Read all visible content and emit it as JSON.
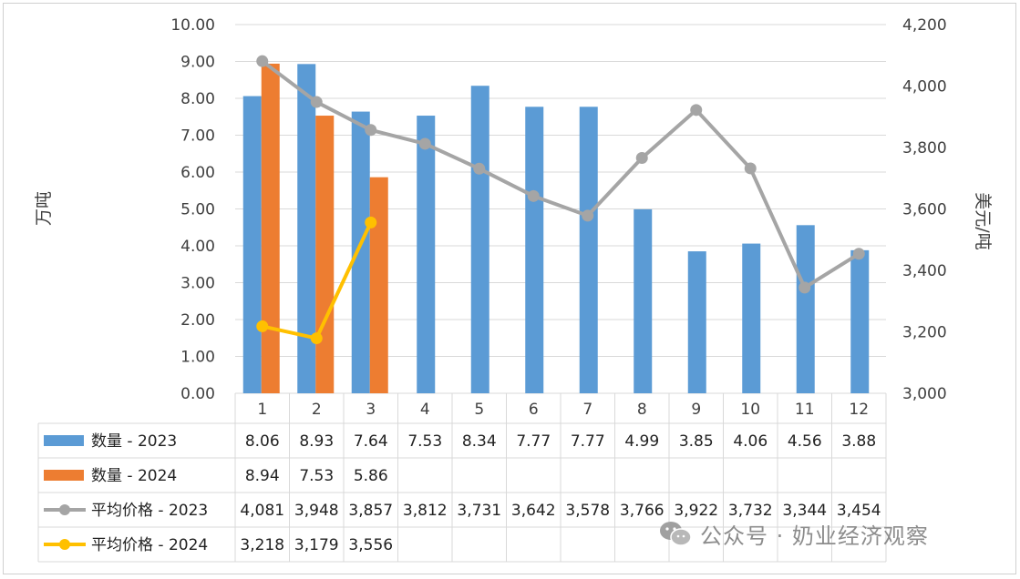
{
  "chart_data": {
    "type": "bar",
    "categories": [
      "1",
      "2",
      "3",
      "4",
      "5",
      "6",
      "7",
      "8",
      "9",
      "10",
      "11",
      "12"
    ],
    "ylabel": "万吨",
    "y2label": "美元/吨",
    "ylim": [
      0,
      10
    ],
    "y2lim": [
      3000,
      4200
    ],
    "y_ticks": [
      "0.00",
      "1.00",
      "2.00",
      "3.00",
      "4.00",
      "5.00",
      "6.00",
      "7.00",
      "8.00",
      "9.00",
      "10.00"
    ],
    "y2_ticks": [
      "3,000",
      "3,200",
      "3,400",
      "3,600",
      "3,800",
      "4,000",
      "4,200"
    ],
    "series": [
      {
        "name": "数量 - 2023",
        "kind": "bar",
        "axis": "left",
        "color": "#5b9bd5",
        "values": [
          8.06,
          8.93,
          7.64,
          7.53,
          8.34,
          7.77,
          7.77,
          4.99,
          3.85,
          4.06,
          4.56,
          3.88
        ],
        "labels": [
          "8.06",
          "8.93",
          "7.64",
          "7.53",
          "8.34",
          "7.77",
          "7.77",
          "4.99",
          "3.85",
          "4.06",
          "4.56",
          "3.88"
        ]
      },
      {
        "name": "数量 - 2024",
        "kind": "bar",
        "axis": "left",
        "color": "#ed7d31",
        "values": [
          8.94,
          7.53,
          5.86,
          null,
          null,
          null,
          null,
          null,
          null,
          null,
          null,
          null
        ],
        "labels": [
          "8.94",
          "7.53",
          "5.86",
          "",
          "",
          "",
          "",
          "",
          "",
          "",
          "",
          ""
        ]
      },
      {
        "name": "平均价格 - 2023",
        "kind": "line",
        "axis": "right",
        "color": "#a5a5a5",
        "values": [
          4081,
          3948,
          3857,
          3812,
          3731,
          3642,
          3578,
          3766,
          3922,
          3732,
          3344,
          3454
        ],
        "labels": [
          "4,081",
          "3,948",
          "3,857",
          "3,812",
          "3,731",
          "3,642",
          "3,578",
          "3,766",
          "3,922",
          "3,732",
          "3,344",
          "3,454"
        ]
      },
      {
        "name": "平均价格 - 2024",
        "kind": "line",
        "axis": "right",
        "color": "#ffc000",
        "values": [
          3218,
          3179,
          3556,
          null,
          null,
          null,
          null,
          null,
          null,
          null,
          null,
          null
        ],
        "labels": [
          "3,218",
          "3,179",
          "3,556",
          "",
          "",
          "",
          "",
          "",
          "",
          "",
          "",
          ""
        ]
      }
    ],
    "legend": "data-table"
  },
  "watermark": {
    "text": "公众号 · 奶业经济观察",
    "icon": "wechat-icon"
  }
}
